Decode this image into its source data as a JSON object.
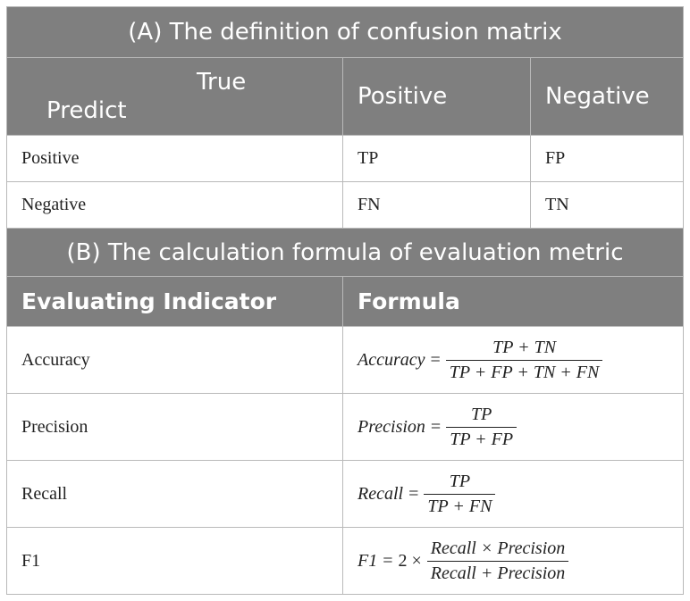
{
  "section_a": {
    "title": "(A) The definition of confusion matrix",
    "corner_true": "True",
    "corner_predict": "Predict",
    "col_positive": "Positive",
    "col_negative": "Negative",
    "rows": [
      {
        "label": "Positive",
        "positive": "TP",
        "negative": "FP"
      },
      {
        "label": "Negative",
        "positive": "FN",
        "negative": "TN"
      }
    ]
  },
  "section_b": {
    "title": "(B) The calculation formula of evaluation metric",
    "col_indicator": "Evaluating Indicator",
    "col_formula": "Formula",
    "metrics": [
      {
        "name": "Accuracy",
        "lhs": "Accuracy",
        "prefix": "",
        "numerator": "TP + TN",
        "denominator": "TP + FP + TN + FN"
      },
      {
        "name": "Precision",
        "lhs": "Precision",
        "prefix": "",
        "numerator": "TP",
        "denominator": "TP + FP"
      },
      {
        "name": "Recall",
        "lhs": "Recall",
        "prefix": "",
        "numerator": "TP",
        "denominator": "TP + FN"
      },
      {
        "name": "F1",
        "lhs": "F1",
        "prefix": "2 ×",
        "numerator": "Recall × Precision",
        "denominator": "Recall + Precision"
      }
    ]
  }
}
